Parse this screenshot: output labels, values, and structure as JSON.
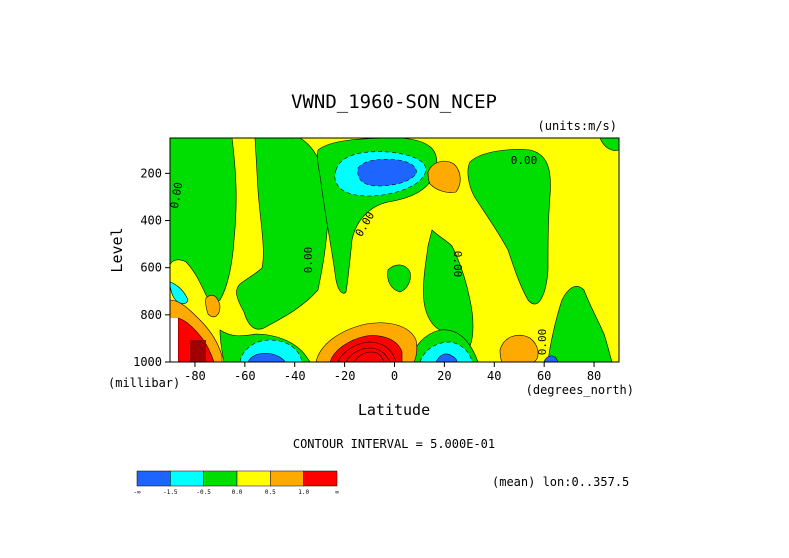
{
  "chart_data": {
    "type": "heatmap",
    "title": "VWND_1960-SON_NCEP",
    "units": "(units:m/s)",
    "xlabel": "Latitude",
    "ylabel": "Level",
    "x_unit": "(degrees_north)",
    "y_unit": "(millibar)",
    "xlim": [
      -90,
      90
    ],
    "ylim": [
      1000,
      50
    ],
    "x_ticks": [
      -80,
      -60,
      -40,
      -20,
      0,
      20,
      40,
      60,
      80
    ],
    "x_tick_labels": [
      "-80",
      "-60",
      "-40",
      "-20",
      "0",
      "20",
      "40",
      "60",
      "80"
    ],
    "y_ticks": [
      200,
      400,
      600,
      800,
      1000
    ],
    "y_tick_labels": [
      "200",
      "400",
      "600",
      "800",
      "1000"
    ],
    "contour_interval": "CONTOUR INTERVAL = 5.000E-01",
    "mean_note": "(mean) lon:0..357.5",
    "contour_labels": [
      "0.00",
      "0.00",
      "0.00",
      "0.00",
      "0.00",
      "0.00",
      "0.00"
    ],
    "colorbar": {
      "colors": [
        "#1e64ff",
        "#00ffff",
        "#00dd00",
        "#ffff00",
        "#ffaa00",
        "#ff0000"
      ],
      "tick_labels": [
        "-∞",
        "-1.5",
        "-0.5",
        "0.0",
        "0.5",
        "1.0",
        "∞"
      ]
    },
    "regions": [
      {
        "name": "southern-polar-green-band",
        "level": "-0.5..0"
      },
      {
        "name": "southern-midlat-green-column",
        "level": "-0.5..0"
      },
      {
        "name": "upper-tropical-blue-jet-cell",
        "level": "< -1.5",
        "center": [
          -5,
          180
        ]
      },
      {
        "name": "upper-tropical-cyan-ring",
        "level": "-1.5..-0.5"
      },
      {
        "name": "upper-20N-orange-cell",
        "level": "0.5..1.0",
        "center": [
          22,
          180
        ]
      },
      {
        "name": "northern-green-column",
        "level": "-0.5..0"
      },
      {
        "name": "tropical-green-column",
        "level": "-0.5..0"
      },
      {
        "name": "northern-polar-green-column",
        "level": "-0.5..0"
      },
      {
        "name": "lower-equatorial-red-cell",
        "level": "> 1.0",
        "center": [
          -10,
          980
        ]
      },
      {
        "name": "lower-20N-blue-cell",
        "level": "< -1.5",
        "center": [
          20,
          990
        ]
      },
      {
        "name": "lower-60S-blue-cell",
        "level": "< -1.5",
        "center": [
          -55,
          990
        ]
      },
      {
        "name": "lower-55N-orange-cell",
        "level": "0.5..1.0",
        "center": [
          52,
          960
        ]
      },
      {
        "name": "antarctic-surface-red-cell",
        "level": "> 1.0",
        "center": [
          -83,
          930
        ]
      }
    ]
  }
}
